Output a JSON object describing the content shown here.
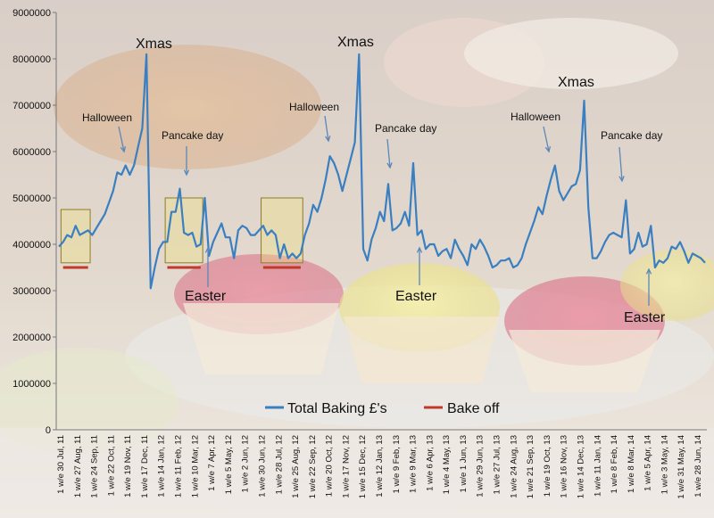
{
  "chart_data": {
    "type": "line",
    "title": "",
    "xlabel": "",
    "ylabel": "",
    "ylim": [
      0,
      9000000
    ],
    "yticks": [
      0,
      1000000,
      2000000,
      3000000,
      4000000,
      5000000,
      6000000,
      7000000,
      8000000,
      9000000
    ],
    "ytick_labels": [
      "0",
      "1000000",
      "2000000",
      "3000000",
      "4000000",
      "5000000",
      "6000000",
      "7000000",
      "8000000",
      "9000000"
    ],
    "x_tick_labels": [
      "1 w/e 30 Jul, 11",
      "1 w/e 27 Aug, 11",
      "1 w/e 24 Sep, 11",
      "1 w/e 22 Oct, 11",
      "1 w/e 19 Nov, 11",
      "1 w/e 17 Dec, 11",
      "1 w/e 14 Jan, 12",
      "1 w/e 11 Feb, 12",
      "1 w/e 10 Mar, 12",
      "1 w/e 7 Apr, 12",
      "1 w/e 5 May, 12",
      "1 w/e 2 Jun, 12",
      "1 w/e 30 Jun, 12",
      "1 w/e 28 Jul, 12",
      "1 w/e 25 Aug, 12",
      "1 w/e 22 Sep, 12",
      "1 w/e 20 Oct, 12",
      "1 w/e 17 Nov, 12",
      "1 w/e 15 Dec, 12",
      "1 w/e 12 Jan, 13",
      "1 w/e 9 Feb, 13",
      "1 w/e 9 Mar, 13",
      "1 w/e 6 Apr, 13",
      "1 w/e 4 May, 13",
      "1 w/e 1 Jun, 13",
      "1 w/e 29 Jun, 13",
      "1 w/e 27 Jul, 13",
      "1 w/e 24 Aug, 13",
      "1 w/e 21 Sep, 13",
      "1 w/e 19 Oct, 13",
      "1 w/e 16 Nov, 13",
      "1 w/e 14 Dec, 13",
      "1 w/e 11 Jan, 14",
      "1 w/e 8 Feb, 14",
      "1 w/e 8 Mar, 14",
      "1 w/e 5 Apr, 14",
      "1 w/e 3 May, 14",
      "1 w/e 31 May, 14",
      "1 w/e 28 Jun, 14"
    ],
    "grid": false,
    "legend_position": "bottom-right",
    "series": [
      {
        "name": "Total Baking £'s",
        "color": "#3a7fc1",
        "values": [
          3950000,
          4050000,
          4200000,
          4150000,
          4400000,
          4200000,
          4250000,
          4300000,
          4200000,
          4350000,
          4500000,
          4650000,
          4900000,
          5150000,
          5550000,
          5500000,
          5700000,
          5500000,
          5700000,
          6100000,
          6500000,
          8100000,
          3050000,
          3500000,
          3900000,
          4050000,
          4050000,
          4700000,
          4700000,
          5200000,
          4250000,
          4200000,
          4250000,
          3950000,
          4000000,
          5000000,
          3750000,
          4050000,
          4250000,
          4450000,
          4150000,
          4150000,
          3700000,
          4300000,
          4400000,
          4350000,
          4200000,
          4200000,
          4300000,
          4400000,
          4200000,
          4300000,
          4200000,
          3700000,
          4000000,
          3700000,
          3800000,
          3700000,
          3800000,
          4200000,
          4450000,
          4850000,
          4700000,
          5000000,
          5400000,
          5900000,
          5750000,
          5500000,
          5150000,
          5500000,
          5850000,
          6200000,
          8100000,
          3900000,
          3650000,
          4100000,
          4350000,
          4700000,
          4500000,
          5300000,
          4300000,
          4350000,
          4450000,
          4700000,
          4400000,
          5750000,
          4200000,
          4300000,
          3900000,
          4000000,
          4000000,
          3750000,
          3850000,
          3900000,
          3700000,
          4100000,
          3900000,
          3750000,
          3550000,
          4000000,
          3900000,
          4100000,
          3950000,
          3750000,
          3500000,
          3550000,
          3650000,
          3650000,
          3700000,
          3500000,
          3550000,
          3700000,
          4000000,
          4250000,
          4500000,
          4800000,
          4650000,
          5050000,
          5400000,
          5700000,
          5150000,
          4950000,
          5100000,
          5250000,
          5300000,
          5600000,
          7100000,
          4800000,
          3700000,
          3700000,
          3850000,
          4050000,
          4200000,
          4250000,
          4200000,
          4150000,
          4950000,
          3800000,
          3900000,
          4250000,
          3950000,
          4000000,
          4400000,
          3500000,
          3650000,
          3600000,
          3700000,
          3950000,
          3900000,
          4050000,
          3850000,
          3600000,
          3800000,
          3750000,
          3700000,
          3600000
        ]
      },
      {
        "name": "Bake off",
        "color": "#c0392b",
        "ranges": [
          [
            1,
            7
          ],
          [
            26,
            34
          ],
          [
            49,
            58
          ]
        ],
        "value": 3500000
      }
    ],
    "annotations": [
      {
        "text": "Xmas",
        "type": "label"
      },
      {
        "text": "Halloween",
        "type": "arrow"
      },
      {
        "text": "Pancake day",
        "type": "arrow"
      },
      {
        "text": "Easter",
        "type": "arrow"
      },
      {
        "text": "Xmas",
        "type": "label"
      },
      {
        "text": "Halloween",
        "type": "arrow"
      },
      {
        "text": "Pancake day",
        "type": "arrow"
      },
      {
        "text": "Easter",
        "type": "arrow"
      },
      {
        "text": "Xmas",
        "type": "label"
      },
      {
        "text": "Halloween",
        "type": "arrow"
      },
      {
        "text": "Pancake day",
        "type": "arrow"
      },
      {
        "text": "Easter",
        "type": "arrow"
      }
    ],
    "highlight_boxes": [
      {
        "x_range": [
          0,
          1
        ],
        "y_range": [
          3600000,
          4750000
        ]
      },
      {
        "x_range": [
          0,
          1
        ],
        "y_range": [
          3600000,
          5000000
        ]
      },
      {
        "x_range": [
          0,
          1
        ],
        "y_range": [
          3600000,
          5000000
        ]
      }
    ]
  }
}
